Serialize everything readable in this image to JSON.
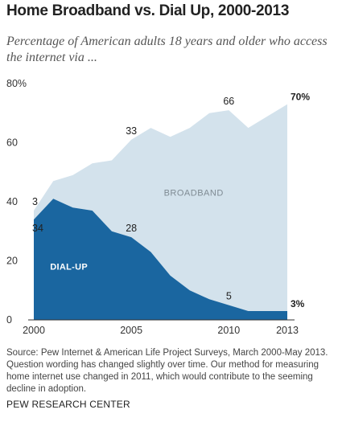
{
  "header": {
    "title": "Home Broadband vs. Dial Up, 2000-2013",
    "subtitle": "Percentage of American adults 18 years and older who access the internet via ..."
  },
  "footer": {
    "source": "Source: Pew Internet & American Life Project Surveys, March 2000-May 2013. Question wording has changed slightly over time. Our method for measuring home internet use changed in 2011, which would contribute to the seeming decline in adoption.",
    "brand": "PEW RESEARCH CENTER"
  },
  "chart_data": {
    "type": "area",
    "title": "Home Broadband vs. Dial Up, 2000-2013",
    "subtitle": "Percentage of American adults 18 years and older who access the internet via ...",
    "xlabel": "",
    "ylabel": "",
    "xlim": [
      2000,
      2013
    ],
    "ylim": [
      0,
      80
    ],
    "x_ticks": [
      "2000",
      "2005",
      "2010",
      "2013"
    ],
    "y_ticks": [
      "0",
      "20",
      "40",
      "60",
      "80%"
    ],
    "grid": false,
    "colors": {
      "broadband": "#d3e2ec",
      "dialup": "#1a66a0"
    },
    "series": [
      {
        "name": "BROADBAND",
        "x": [
          2000,
          2001,
          2002,
          2003,
          2004,
          2005,
          2006,
          2007,
          2008,
          2009,
          2010,
          2011,
          2012,
          2013
        ],
        "values": [
          3,
          6,
          11,
          16,
          24,
          33,
          42,
          47,
          55,
          63,
          66,
          62,
          66,
          70
        ]
      },
      {
        "name": "DIAL-UP",
        "x": [
          2000,
          2001,
          2002,
          2003,
          2004,
          2005,
          2006,
          2007,
          2008,
          2009,
          2010,
          2011,
          2012,
          2013
        ],
        "values": [
          34,
          41,
          38,
          37,
          30,
          28,
          23,
          15,
          10,
          7,
          5,
          3,
          3,
          3
        ]
      }
    ],
    "annotations": [
      {
        "series": "BROADBAND",
        "x": 2000,
        "label": "3"
      },
      {
        "series": "BROADBAND",
        "x": 2005,
        "label": "33"
      },
      {
        "series": "BROADBAND",
        "x": 2010,
        "label": "66"
      },
      {
        "series": "BROADBAND",
        "x": 2013,
        "label": "70%"
      },
      {
        "series": "DIAL-UP",
        "x": 2000,
        "label": "34"
      },
      {
        "series": "DIAL-UP",
        "x": 2005,
        "label": "28"
      },
      {
        "series": "DIAL-UP",
        "x": 2010,
        "label": "5"
      },
      {
        "series": "DIAL-UP",
        "x": 2013,
        "label": "3%"
      }
    ]
  }
}
